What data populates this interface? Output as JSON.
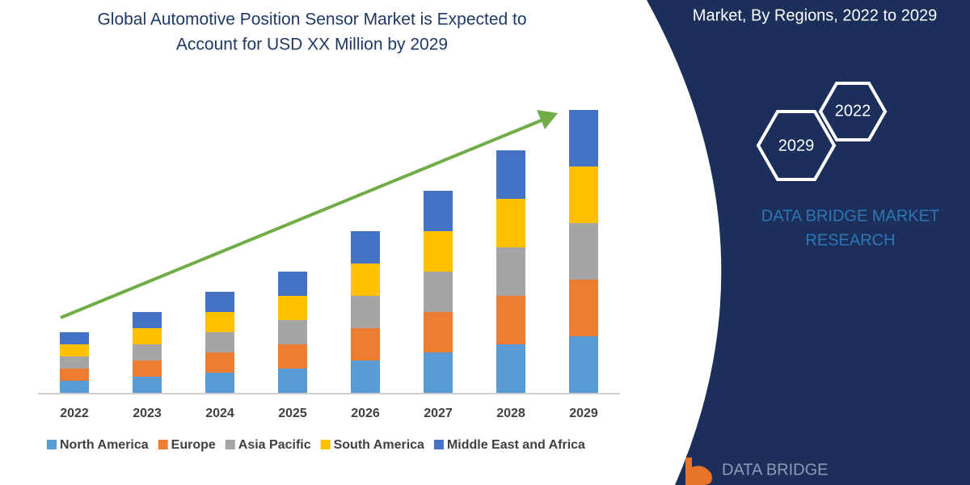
{
  "chart_data": {
    "type": "stacked_bar",
    "title": [
      "Global Automotive Position Sensor Market is Expected to",
      "Account for USD XX Million by 2029"
    ],
    "categories": [
      "2022",
      "2023",
      "2024",
      "2025",
      "2026",
      "2027",
      "2028",
      "2029"
    ],
    "series": [
      {
        "name": "North America",
        "color": "#5b9bd5",
        "values": [
          15,
          20,
          25,
          30,
          40,
          50,
          60,
          70
        ]
      },
      {
        "name": "Europe",
        "color": "#ed7d31",
        "values": [
          15,
          20,
          25,
          30,
          40,
          50,
          60,
          70
        ]
      },
      {
        "name": "Asia Pacific",
        "color": "#a5a5a5",
        "values": [
          15,
          20,
          25,
          30,
          40,
          50,
          60,
          70
        ]
      },
      {
        "name": "South America",
        "color": "#ffc000",
        "values": [
          15,
          20,
          25,
          30,
          40,
          50,
          60,
          70
        ]
      },
      {
        "name": "Middle East and Africa",
        "color": "#4472c4",
        "values": [
          15,
          20,
          25,
          30,
          40,
          50,
          60,
          70
        ]
      }
    ],
    "ylim": [
      0,
      350
    ]
  },
  "panel": {
    "subtitle": "Market, By Regions, 2022 to 2029",
    "hex_front": "2029",
    "hex_back": "2022",
    "brand": [
      "DATA BRIDGE MARKET",
      "RESEARCH"
    ],
    "logo": "DATA BRIDGE"
  }
}
